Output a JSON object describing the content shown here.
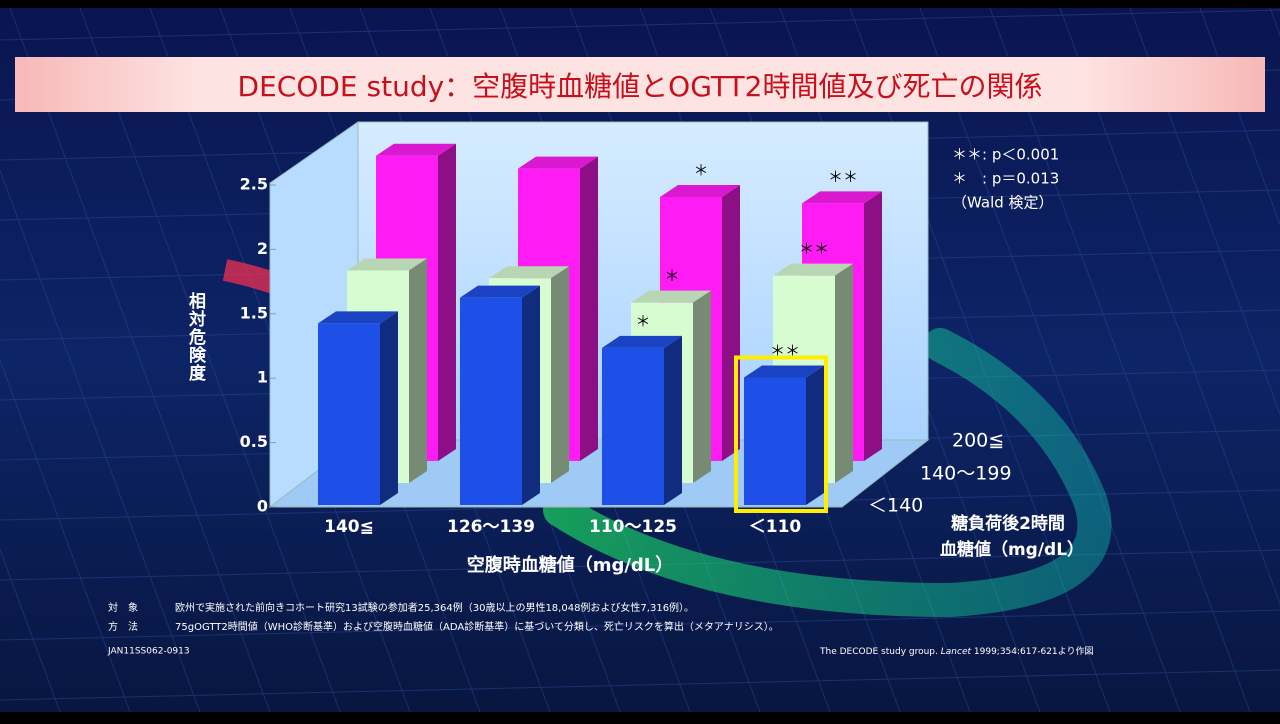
{
  "chart_data": {
    "type": "bar3d",
    "title": "DECODE study：空腹時血糖値とOGTT2時間値及び死亡の関係",
    "y_label": "相対危険度",
    "x_label": "空腹時血糖値（mg/dL）",
    "z_label": [
      "糖負荷後2時間",
      "血糖値（mg/dL）"
    ],
    "categories": [
      "140≦",
      "126～139",
      "110～125",
      "＜110"
    ],
    "series": [
      {
        "name": "＜140",
        "color": "#1e4fe6",
        "values": [
          1.41,
          1.61,
          1.22,
          0.99
        ],
        "significance": [
          null,
          null,
          "＊",
          "＊＊"
        ]
      },
      {
        "name": "140～199",
        "color": "#d8fcd2",
        "values": [
          1.65,
          1.59,
          1.4,
          1.61
        ],
        "significance": [
          null,
          null,
          "＊",
          "＊＊"
        ]
      },
      {
        "name": "200≦",
        "color": "#ff1cf4",
        "values": [
          2.37,
          2.27,
          2.05,
          2.0
        ],
        "significance": [
          null,
          null,
          "＊",
          "＊＊"
        ]
      }
    ],
    "ylim": [
      0,
      2.5
    ],
    "yticks": [
      0,
      0.5,
      1,
      1.5,
      2,
      2.5
    ],
    "highlight": {
      "series": 0,
      "category": 3,
      "color": "#ffee00"
    },
    "notes": [
      "＊＊: p＜0.001",
      "＊　: p＝0.013",
      "（Wald 検定）"
    ],
    "footnotes": [
      {
        "label": "対　象",
        "text": "欧州で実施された前向きコホート研究13試験の参加者25,364例（30歳以上の男性18,048例および女性7,316例）。"
      },
      {
        "label": "方　法",
        "text": "75gOGTT2時間値（WHO診断基準）および空腹時血糖値（ADA診断基準）に基づいて分類し、死亡リスクを算出（メタアナリシス）。"
      }
    ],
    "code": "JAN11SS062-0913",
    "citation": {
      "authors": "The DECODE study group.",
      "journal": "Lancet",
      "details": "1999;354:617-621より作図"
    }
  }
}
